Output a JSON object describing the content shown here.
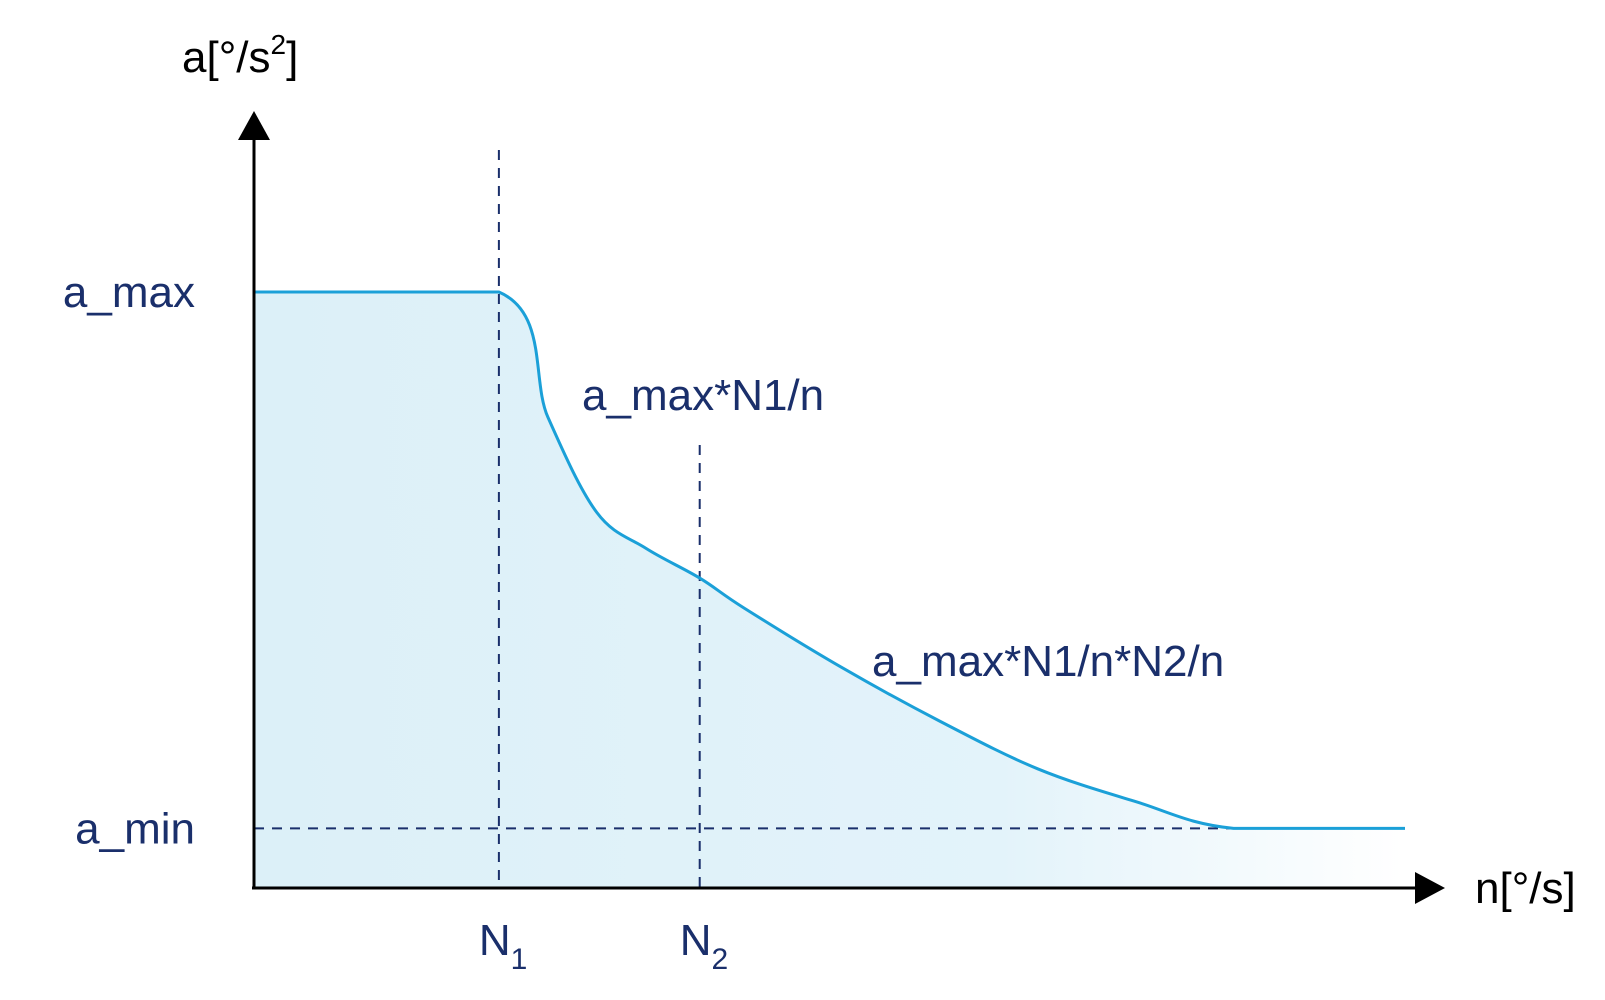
{
  "chart_data": {
    "type": "line",
    "title": "",
    "ylabel": {
      "base": "a[°/s",
      "sup": "2",
      "end": "]"
    },
    "xlabel": "n[°/s]",
    "y_ticks": [
      {
        "label": "a_max",
        "value": 1.0
      },
      {
        "label": "a_min",
        "value": 0.1
      }
    ],
    "x_ticks": [
      {
        "label": "N",
        "sub": "1",
        "value": 1.0
      },
      {
        "label": "N",
        "sub": "2",
        "value": 1.82
      }
    ],
    "annotations": [
      {
        "id": "segment-2",
        "text": "a_max*N1/n"
      },
      {
        "id": "segment-3",
        "text": "a_max*N1/n*N2/n"
      }
    ],
    "series": [
      {
        "x": [
          0,
          1.0,
          1.2,
          1.4,
          1.6,
          1.82,
          2.0,
          2.4,
          2.8,
          3.2,
          3.6,
          4.0,
          4.7
        ],
        "y": [
          1.0,
          1.0,
          0.79,
          0.63,
          0.57,
          0.52,
          0.47,
          0.37,
          0.28,
          0.2,
          0.145,
          0.1,
          0.1
        ]
      }
    ],
    "xlim": [
      0,
      4.7
    ],
    "ylim": [
      0,
      1.0
    ],
    "grid": false,
    "colors": {
      "line": "#1ba0d8",
      "fill": "#dff1f9",
      "axis": "#000000",
      "label": "#1a2f6b",
      "guide": "#1a2f6b"
    }
  }
}
